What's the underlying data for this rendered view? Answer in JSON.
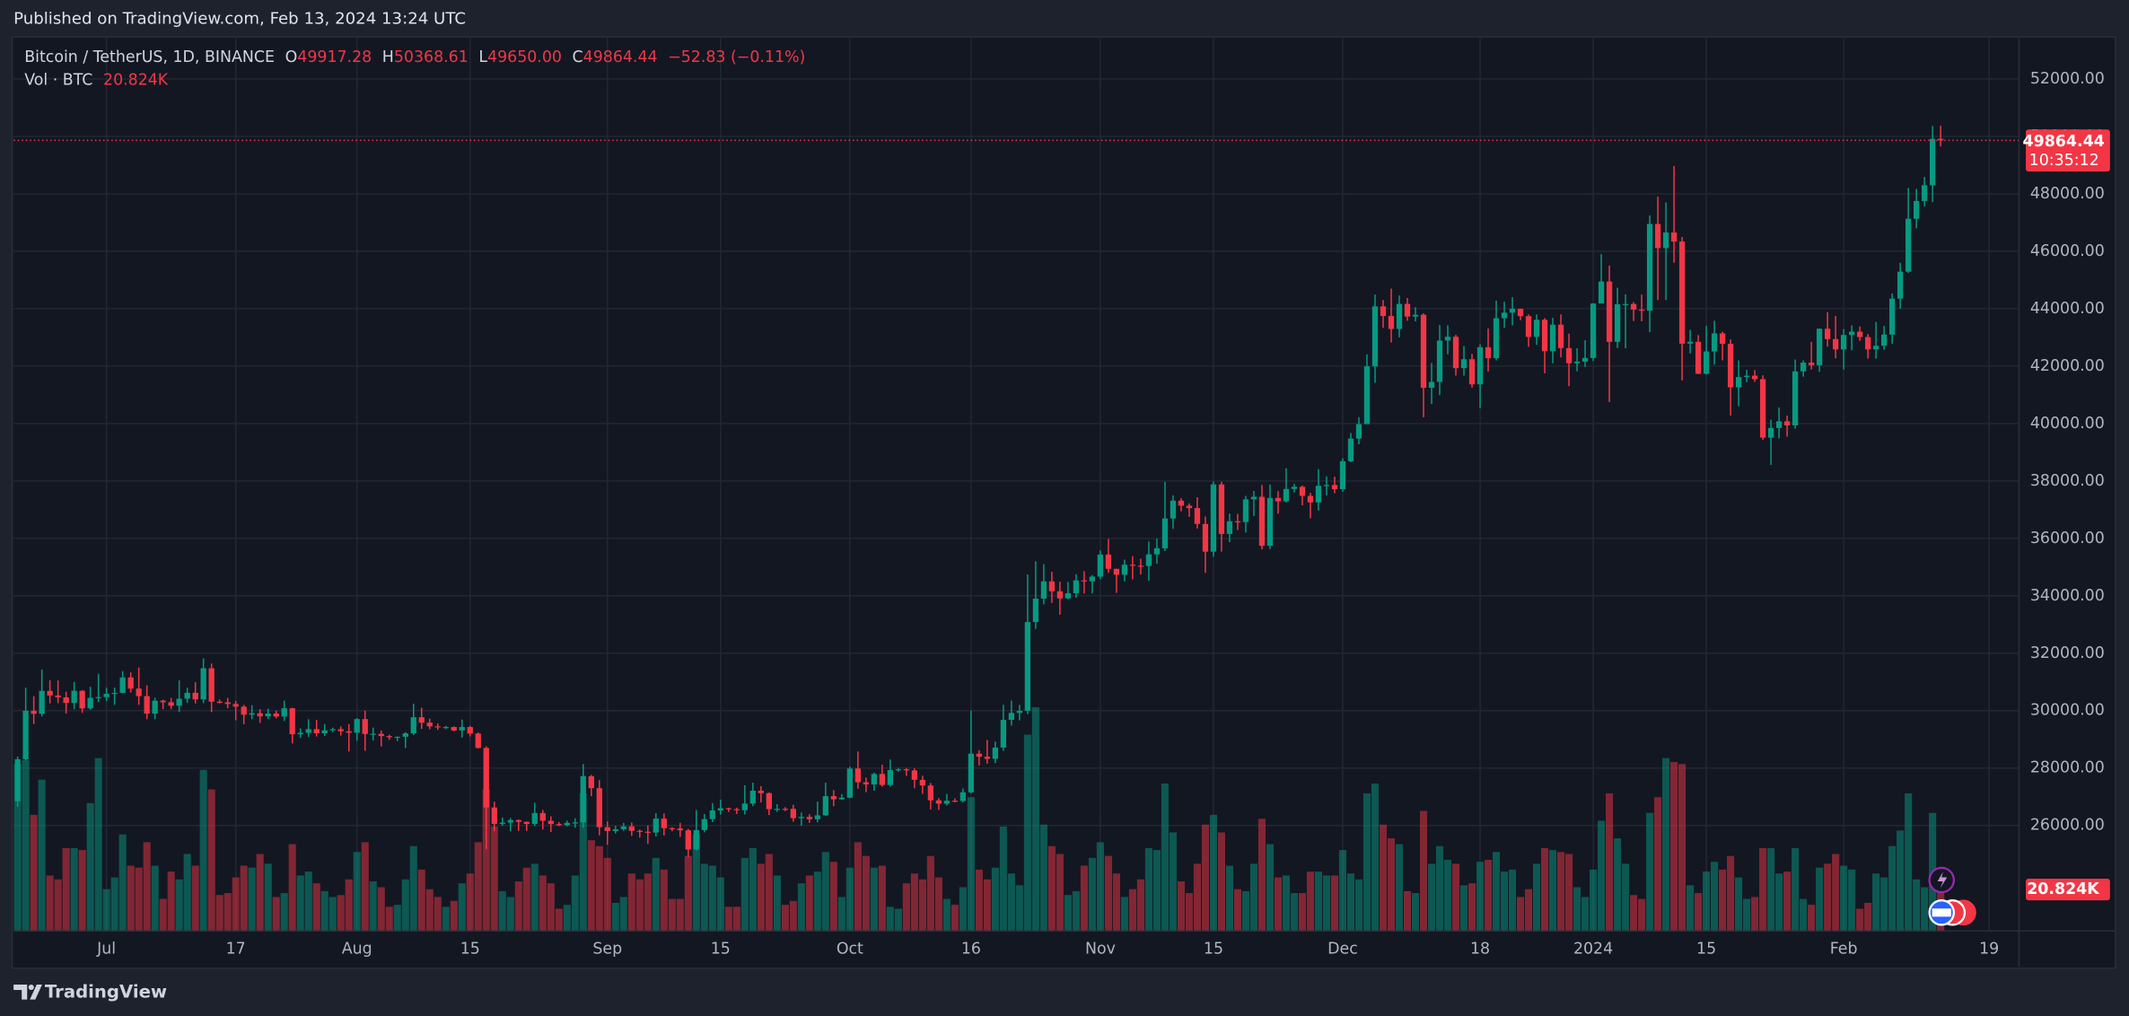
{
  "published": "Published on TradingView.com, Feb 13, 2024 13:24 UTC",
  "footer_brand": "TradingView",
  "chart_data": {
    "type": "candlestick",
    "legend": {
      "title": "Bitcoin / TetherUS, 1D, BINANCE",
      "items": [
        {
          "key": "O",
          "label": "49917.28"
        },
        {
          "key": "H",
          "label": "50368.61"
        },
        {
          "key": "L",
          "label": "49650.00"
        },
        {
          "key": "C",
          "label": "49864.44"
        }
      ],
      "change": "−52.83 (−0.11%)",
      "volume_title": "Vol · BTC",
      "volume_label": "20.824K"
    },
    "last_price_label": "49864.44",
    "countdown": "10:35:12",
    "last_volume_label": "20.824K",
    "colors": {
      "up": "#089981",
      "down": "#f23645"
    },
    "grid": true,
    "xlim": [
      -0.5,
      247.7
    ],
    "xticks": [
      {
        "value": 11,
        "label": "Jul"
      },
      {
        "value": 27,
        "label": "17"
      },
      {
        "value": 42,
        "label": "Aug"
      },
      {
        "value": 56,
        "label": "15"
      },
      {
        "value": 73,
        "label": "Sep"
      },
      {
        "value": 87,
        "label": "15"
      },
      {
        "value": 103,
        "label": "Oct"
      },
      {
        "value": 118,
        "label": "16"
      },
      {
        "value": 134,
        "label": "Nov"
      },
      {
        "value": 148,
        "label": "15"
      },
      {
        "value": 164,
        "label": "Dec"
      },
      {
        "value": 181,
        "label": "18"
      },
      {
        "value": 195,
        "label": "2024"
      },
      {
        "value": 209,
        "label": "15"
      },
      {
        "value": 226,
        "label": "Feb"
      },
      {
        "value": 244,
        "label": "19"
      }
    ],
    "ylim": [
      22350,
      53420
    ],
    "yticks": [
      {
        "value": 26000,
        "label": "26000.00"
      },
      {
        "value": 28000,
        "label": "28000.00"
      },
      {
        "value": 30000,
        "label": "30000.00"
      },
      {
        "value": 32000,
        "label": "32000.00"
      },
      {
        "value": 34000,
        "label": "34000.00"
      },
      {
        "value": 36000,
        "label": "36000.00"
      },
      {
        "value": 38000,
        "label": "38000.00"
      },
      {
        "value": 40000,
        "label": "40000.00"
      },
      {
        "value": 42000,
        "label": "42000.00"
      },
      {
        "value": 44000,
        "label": "44000.00"
      },
      {
        "value": 46000,
        "label": "46000.00"
      },
      {
        "value": 48000,
        "label": "48000.00"
      },
      {
        "value": 50000,
        "label": "50000.00"
      },
      {
        "value": 52000,
        "label": "52000.00"
      }
    ],
    "volume_lim": [
      0,
      456000
    ],
    "open": [
      26841,
      28307,
      29993,
      29890,
      30688,
      30527,
      30462,
      30267,
      30692,
      30077,
      30446,
      30472,
      30585,
      30617,
      31156,
      30767,
      30504,
      29895,
      30346,
      30292,
      30171,
      30414,
      30620,
      30391,
      31476,
      30312,
      30289,
      30231,
      30138,
      29859,
      29910,
      29800,
      29901,
      29794,
      30083,
      29176,
      29228,
      29354,
      29211,
      29314,
      29352,
      29281,
      29232,
      29705,
      29186,
      29193,
      29113,
      29072,
      29088,
      29209,
      29770,
      29581,
      29452,
      29425,
      29428,
      29309,
      29430,
      29200,
      28701,
      26628,
      26054,
      26100,
      26189,
      26125,
      26055,
      26432,
      26163,
      26050,
      26008,
      26089,
      26106,
      27716,
      27299,
      25940,
      25805,
      25868,
      25969,
      25812,
      25780,
      25753,
      26240,
      25905,
      25895,
      25832,
      25162,
      25840,
      26222,
      26522,
      26600,
      26568,
      26530,
      26762,
      27210,
      27125,
      26568,
      26580,
      26579,
      26256,
      26298,
      26217,
      26352,
      27021,
      26911,
      26967,
      27983,
      27505,
      27429,
      27794,
      27410,
      27931,
      27956,
      27917,
      27590,
      27391,
      26875,
      26759,
      26862,
      26852,
      27154,
      28500,
      28395,
      28320,
      28713,
      29679,
      29919,
      29993,
      33086,
      33901,
      34502,
      34156,
      33909,
      34089,
      34538,
      34502,
      34667,
      35437,
      34938,
      34732,
      35082,
      35049,
      35037,
      35443,
      35655,
      36693,
      37313,
      37138,
      37054,
      36502,
      35537,
      37880,
      36154,
      36596,
      36568,
      37359,
      37448,
      35741,
      37408,
      37289,
      37720,
      37796,
      37479,
      37254,
      37831,
      37858,
      37712,
      38688,
      39476,
      39978,
      41991,
      44080,
      43746,
      43292,
      44166,
      43725,
      43789,
      41243,
      41450,
      42890,
      43023,
      41930,
      42240,
      41365,
      42657,
      42275,
      43668,
      43861,
      43997,
      43739,
      43016,
      43613,
      42520,
      43442,
      42627,
      42099,
      42156,
      42283,
      44180,
      44946,
      42846,
      44152,
      44162,
      43968,
      43929,
      46951,
      46110,
      46654,
      46339,
      42782,
      42847,
      41733,
      42511,
      43139,
      42777,
      41262,
      41618,
      41665,
      41545,
      39508,
      39845,
      40077,
      39934,
      41816,
      42120,
      42031,
      43300,
      42941,
      42580,
      43082,
      43200,
      43011,
      42582,
      42708,
      43098,
      44349,
      45288,
      47132,
      47751,
      48299,
      49917.28
    ],
    "high": [
      28400,
      30800,
      30500,
      31430,
      31060,
      31050,
      30660,
      31000,
      30710,
      30830,
      31280,
      30800,
      30800,
      31380,
      31330,
      31500,
      30880,
      30450,
      30380,
      30440,
      31050,
      30800,
      30990,
      31820,
      31640,
      30390,
      30440,
      30340,
      30200,
      30190,
      30050,
      30070,
      30000,
      30350,
      30100,
      29380,
      29700,
      29680,
      29530,
      29410,
      29450,
      29530,
      29740,
      30000,
      29410,
      29310,
      29160,
      29100,
      29250,
      30240,
      30100,
      29720,
      29550,
      29470,
      29450,
      29690,
      29470,
      29240,
      28760,
      26830,
      26280,
      26260,
      26210,
      26140,
      26790,
      26540,
      26320,
      26120,
      26170,
      26250,
      28140,
      27760,
      27580,
      26140,
      25980,
      26090,
      26100,
      25860,
      26000,
      26430,
      26420,
      25940,
      26090,
      25880,
      26540,
      26400,
      26780,
      26900,
      26620,
      26620,
      27400,
      27490,
      27370,
      27150,
      26740,
      26640,
      26720,
      26450,
      26390,
      26830,
      27490,
      27230,
      27090,
      28050,
      28580,
      27670,
      27840,
      28120,
      28300,
      28000,
      28000,
      27990,
      27730,
      27480,
      26950,
      27100,
      26940,
      27290,
      30000,
      28620,
      28980,
      28920,
      30200,
      30350,
      30200,
      34740,
      35200,
      35100,
      34840,
      34490,
      34480,
      34750,
      34860,
      34720,
      35580,
      35980,
      34940,
      35260,
      35380,
      35290,
      35890,
      35990,
      37970,
      37500,
      37400,
      37220,
      37430,
      36760,
      37980,
      37970,
      36860,
      36850,
      37480,
      37650,
      37860,
      37870,
      37650,
      38440,
      37890,
      37840,
      37590,
      38410,
      38160,
      38150,
      38790,
      39670,
      40220,
      42410,
      44490,
      44300,
      44700,
      44460,
      44370,
      44050,
      43840,
      42110,
      43430,
      43420,
      43090,
      42700,
      42430,
      42760,
      43310,
      44280,
      44240,
      44400,
      44000,
      43800,
      43800,
      43670,
      43680,
      43800,
      43130,
      42620,
      42900,
      44190,
      45900,
      45500,
      44730,
      44500,
      44230,
      44490,
      47250,
      47900,
      47700,
      48970,
      46500,
      43260,
      43080,
      43400,
      43580,
      43200,
      42930,
      42200,
      41870,
      41860,
      41680,
      40130,
      40560,
      40280,
      42230,
      42200,
      42840,
      43310,
      43880,
      43750,
      43290,
      43420,
      43380,
      43120,
      43540,
      43400,
      44530,
      45600,
      48200,
      48170,
      48590,
      50360,
      50368.61
    ],
    "low": [
      26650,
      28260,
      29530,
      29800,
      30250,
      30260,
      29900,
      30050,
      29920,
      30030,
      30300,
      30330,
      30200,
      30600,
      30630,
      30200,
      29700,
      29700,
      30050,
      30050,
      29950,
      30270,
      30250,
      30260,
      29950,
      30250,
      30080,
      29660,
      29520,
      29700,
      29570,
      29710,
      29730,
      29640,
      28860,
      29050,
      29080,
      29100,
      29120,
      29250,
      29130,
      28580,
      28950,
      28600,
      28960,
      28750,
      28980,
      28940,
      28700,
      29150,
      29360,
      29350,
      29330,
      29360,
      29280,
      29060,
      29100,
      28680,
      25170,
      25800,
      25990,
      25800,
      25810,
      25810,
      25980,
      25860,
      25770,
      25980,
      25970,
      25920,
      25920,
      27020,
      25660,
      25330,
      25720,
      25810,
      25640,
      25580,
      25360,
      25620,
      25650,
      25800,
      25600,
      24900,
      25130,
      25760,
      26120,
      26380,
      26470,
      26400,
      26380,
      26670,
      26800,
      26360,
      26470,
      26500,
      26130,
      25990,
      26090,
      26110,
      26330,
      26670,
      26890,
      26950,
      27280,
      27160,
      27210,
      27350,
      27350,
      27870,
      27730,
      27300,
      27100,
      26560,
      26540,
      26700,
      26810,
      26800,
      27120,
      28090,
      28150,
      28170,
      28600,
      29480,
      29660,
      29880,
      32850,
      33700,
      33750,
      33340,
      33880,
      33930,
      34080,
      34080,
      34580,
      34800,
      34100,
      34500,
      34570,
      34740,
      34520,
      35120,
      35560,
      36330,
      36940,
      36750,
      36340,
      34800,
      35360,
      35540,
      35870,
      36290,
      36200,
      36780,
      35620,
      35630,
      36860,
      37250,
      37600,
      37150,
      36700,
      36970,
      37500,
      37570,
      37620,
      38650,
      39280,
      39980,
      41420,
      43330,
      42820,
      43000,
      43580,
      43560,
      40220,
      40680,
      40990,
      42410,
      41670,
      41670,
      41250,
      40530,
      41810,
      42200,
      43330,
      43420,
      43600,
      42670,
      42740,
      41750,
      42100,
      42300,
      41300,
      41820,
      41970,
      42180,
      44180,
      40750,
      42630,
      42620,
      43570,
      43560,
      43180,
      44300,
      44300,
      45600,
      41500,
      42440,
      41720,
      41700,
      42050,
      42200,
      40280,
      40600,
      41440,
      41450,
      39430,
      38560,
      39480,
      39540,
      39820,
      41630,
      41880,
      41800,
      42680,
      42270,
      41880,
      42550,
      42880,
      42260,
      42260,
      42570,
      42780,
      44000,
      45240,
      46800,
      47560,
      47710,
      49650
    ],
    "close": [
      28307,
      29993,
      29890,
      30688,
      30527,
      30462,
      30267,
      30692,
      30077,
      30446,
      30472,
      30585,
      30617,
      31156,
      30767,
      30504,
      29895,
      30346,
      30292,
      30171,
      30414,
      30620,
      30391,
      31476,
      30312,
      30289,
      30231,
      30138,
      29859,
      29910,
      29800,
      29901,
      29794,
      30083,
      29176,
      29228,
      29354,
      29211,
      29314,
      29352,
      29281,
      29232,
      29705,
      29186,
      29193,
      29113,
      29072,
      29088,
      29209,
      29770,
      29581,
      29452,
      29425,
      29428,
      29309,
      29430,
      29200,
      28701,
      26628,
      26054,
      26100,
      26189,
      26125,
      26055,
      26432,
      26163,
      26050,
      26008,
      26089,
      26106,
      27716,
      27299,
      25940,
      25805,
      25868,
      25969,
      25812,
      25780,
      25753,
      26240,
      25905,
      25895,
      25832,
      25162,
      25840,
      26222,
      26522,
      26600,
      26568,
      26530,
      26762,
      27210,
      27125,
      26568,
      26580,
      26579,
      26256,
      26298,
      26217,
      26352,
      27021,
      26911,
      26967,
      27983,
      27505,
      27429,
      27794,
      27410,
      27931,
      27956,
      27917,
      27590,
      27391,
      26875,
      26759,
      26862,
      26852,
      27154,
      28500,
      28395,
      28320,
      28713,
      29679,
      29919,
      29993,
      33086,
      33901,
      34502,
      34156,
      33909,
      34089,
      34538,
      34502,
      34667,
      35437,
      34938,
      34732,
      35082,
      35049,
      35037,
      35443,
      35655,
      36693,
      37313,
      37138,
      37054,
      36502,
      35537,
      37880,
      36154,
      36596,
      36568,
      37359,
      37448,
      35741,
      37408,
      37289,
      37720,
      37796,
      37479,
      37254,
      37831,
      37858,
      37712,
      38688,
      39476,
      39978,
      41991,
      44080,
      43746,
      43292,
      44166,
      43725,
      43789,
      41243,
      41450,
      42890,
      43023,
      41930,
      42240,
      41365,
      42657,
      42275,
      43668,
      43861,
      43997,
      43739,
      43016,
      43613,
      42520,
      43442,
      42627,
      42099,
      42156,
      42283,
      44180,
      44946,
      42846,
      44152,
      44162,
      43968,
      43929,
      46951,
      46110,
      46654,
      46339,
      42782,
      42847,
      41733,
      42511,
      43139,
      42777,
      41262,
      41618,
      41665,
      41545,
      39508,
      39845,
      40077,
      39934,
      41816,
      42120,
      42031,
      43300,
      42941,
      42580,
      43082,
      43200,
      43011,
      42582,
      42708,
      43098,
      44349,
      45288,
      47132,
      47751,
      48299,
      49917.27,
      49864.44
    ],
    "volume": [
      85000,
      87000,
      59000,
      77000,
      28000,
      26000,
      42000,
      42000,
      41000,
      65000,
      88000,
      21000,
      27000,
      49000,
      33000,
      32000,
      45000,
      33000,
      16000,
      30000,
      26000,
      39000,
      33000,
      82000,
      72000,
      18000,
      19000,
      27000,
      33000,
      32000,
      39000,
      34000,
      17000,
      19000,
      44000,
      28000,
      30000,
      24000,
      20000,
      17000,
      18000,
      26000,
      40000,
      45000,
      25000,
      22000,
      12000,
      13000,
      26000,
      43000,
      31000,
      21000,
      17000,
      12000,
      15000,
      24000,
      29000,
      45000,
      72000,
      53000,
      20000,
      17000,
      25000,
      32000,
      34000,
      28000,
      24000,
      11000,
      13000,
      28000,
      70000,
      46000,
      43000,
      37000,
      14000,
      17000,
      29000,
      26000,
      29000,
      37000,
      31000,
      16000,
      16000,
      38000,
      49000,
      34000,
      33000,
      27000,
      12000,
      12000,
      37000,
      42000,
      34000,
      39000,
      28000,
      13000,
      15000,
      24000,
      28000,
      30000,
      40000,
      35000,
      17000,
      32000,
      45000,
      38000,
      32000,
      33000,
      12000,
      11000,
      24000,
      29000,
      26000,
      38000,
      27000,
      16000,
      13000,
      22000,
      68000,
      31000,
      26000,
      32000,
      53000,
      29000,
      23000,
      100000,
      114000,
      54000,
      43000,
      39000,
      18000,
      20000,
      33000,
      37000,
      45000,
      38000,
      29000,
      17000,
      21000,
      26000,
      42000,
      41000,
      75000,
      50000,
      25000,
      19000,
      34000,
      54000,
      59000,
      50000,
      33000,
      21000,
      20000,
      34000,
      57000,
      44000,
      27000,
      28000,
      19000,
      19000,
      30000,
      30000,
      28000,
      28000,
      41000,
      29000,
      26000,
      70000,
      75000,
      54000,
      47000,
      44000,
      20000,
      19000,
      61000,
      34000,
      43000,
      36000,
      34000,
      23000,
      24000,
      35000,
      36000,
      40000,
      30000,
      31000,
      17000,
      21000,
      34000,
      42000,
      41000,
      40000,
      39000,
      22000,
      17000,
      31000,
      56000,
      70000,
      47000,
      34000,
      18000,
      16000,
      60000,
      68000,
      88000,
      86000,
      85000,
      23000,
      19000,
      30000,
      35000,
      31000,
      38000,
      27000,
      16000,
      17000,
      42000,
      42000,
      29000,
      30000,
      42000,
      16000,
      13000,
      32000,
      34000,
      39000,
      33000,
      31000,
      11000,
      14000,
      29000,
      27000,
      43000,
      51000,
      70000,
      26000,
      22000,
      60000,
      20824
    ]
  }
}
